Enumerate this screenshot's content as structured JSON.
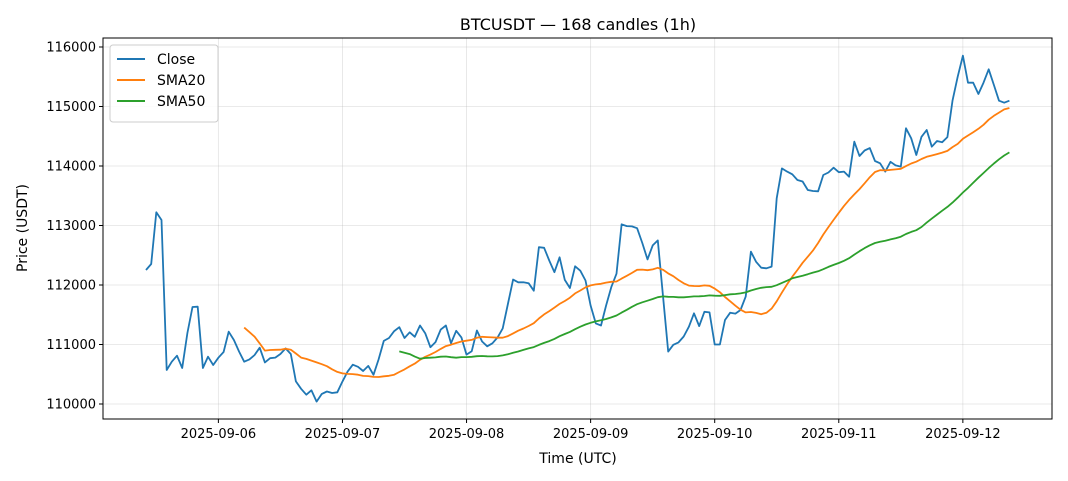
{
  "chart_data": {
    "type": "line",
    "title": "BTCUSDT — 168 candles (1h)",
    "xlabel": "Time (UTC)",
    "ylabel": "Price (USDT)",
    "start": "2025-09-05 10:00",
    "interval": "1h",
    "ylim": [
      109748,
      116151
    ],
    "yticks": [
      110000,
      111000,
      112000,
      113000,
      114000,
      115000,
      116000
    ],
    "ytick_labels": [
      "110000",
      "111000",
      "112000",
      "113000",
      "114000",
      "115000",
      "116000"
    ],
    "xticks": [
      {
        "index": 14,
        "label": "2025-09-06"
      },
      {
        "index": 38,
        "label": "2025-09-07"
      },
      {
        "index": 62,
        "label": "2025-09-08"
      },
      {
        "index": 86,
        "label": "2025-09-09"
      },
      {
        "index": 110,
        "label": "2025-09-10"
      },
      {
        "index": 134,
        "label": "2025-09-11"
      },
      {
        "index": 158,
        "label": "2025-09-12"
      }
    ],
    "grid": true,
    "legend_position": "top-left",
    "series": [
      {
        "name": "Close",
        "color": "#1f77b4",
        "kind": "raw"
      },
      {
        "name": "SMA20",
        "color": "#ff7f0e",
        "kind": "sma",
        "window": 20
      },
      {
        "name": "SMA50",
        "color": "#2ca02c",
        "kind": "sma",
        "window": 50
      }
    ],
    "close": [
      112252,
      112353,
      113222,
      113092,
      110571,
      110711,
      110812,
      110605,
      111193,
      111630,
      111635,
      110605,
      110795,
      110655,
      110778,
      110874,
      111215,
      111076,
      110880,
      110711,
      110750,
      110823,
      110946,
      110700,
      110770,
      110780,
      110840,
      110935,
      110840,
      110380,
      110255,
      110157,
      110230,
      110040,
      110170,
      110210,
      110185,
      110197,
      110380,
      110545,
      110660,
      110625,
      110555,
      110640,
      110490,
      110750,
      111060,
      111110,
      111225,
      111290,
      111110,
      111205,
      111130,
      111320,
      111190,
      110955,
      111040,
      111250,
      111320,
      111020,
      111230,
      111120,
      110830,
      110885,
      111235,
      111050,
      110970,
      111020,
      111120,
      111270,
      111680,
      112090,
      112045,
      112045,
      112030,
      111905,
      112635,
      112625,
      112410,
      112215,
      112465,
      112085,
      111950,
      112315,
      112240,
      112075,
      111655,
      111355,
      111320,
      111655,
      111965,
      112190,
      113020,
      112990,
      112985,
      112955,
      112705,
      112430,
      112665,
      112750,
      111815,
      110880,
      110995,
      111035,
      111135,
      111300,
      111525,
      111310,
      111550,
      111540,
      111000,
      111000,
      111412,
      111535,
      111520,
      111580,
      111805,
      112560,
      112390,
      112290,
      112280,
      112310,
      113457,
      113960,
      113905,
      113860,
      113765,
      113740,
      113597,
      113580,
      113575,
      113849,
      113890,
      113972,
      113895,
      113905,
      113820,
      114408,
      114168,
      114260,
      114300,
      114084,
      114045,
      113905,
      114070,
      114010,
      113990,
      114633,
      114465,
      114185,
      114490,
      114605,
      114325,
      114420,
      114400,
      114485,
      115098,
      115500,
      115853,
      115400,
      115400,
      115210,
      115400,
      115625,
      115361,
      115098,
      115064,
      115098
    ]
  }
}
